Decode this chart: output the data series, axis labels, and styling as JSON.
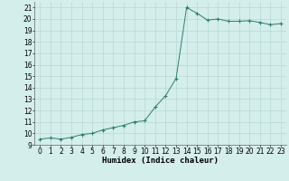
{
  "x": [
    0,
    1,
    2,
    3,
    4,
    5,
    6,
    7,
    8,
    9,
    10,
    11,
    12,
    13,
    14,
    15,
    16,
    17,
    18,
    19,
    20,
    21,
    22,
    23
  ],
  "y": [
    9.5,
    9.6,
    9.5,
    9.65,
    9.9,
    10.0,
    10.3,
    10.5,
    10.7,
    11.0,
    11.1,
    12.3,
    13.3,
    14.8,
    21.0,
    20.5,
    19.9,
    20.0,
    19.8,
    19.8,
    19.85,
    19.7,
    19.5,
    19.6
  ],
  "xlabel": "Humidex (Indice chaleur)",
  "xlim": [
    -0.5,
    23.5
  ],
  "ylim": [
    9,
    21.5
  ],
  "yticks": [
    9,
    10,
    11,
    12,
    13,
    14,
    15,
    16,
    17,
    18,
    19,
    20,
    21
  ],
  "xticks": [
    0,
    1,
    2,
    3,
    4,
    5,
    6,
    7,
    8,
    9,
    10,
    11,
    12,
    13,
    14,
    15,
    16,
    17,
    18,
    19,
    20,
    21,
    22,
    23
  ],
  "line_color": "#2e7d6e",
  "marker_color": "#2e7d6e",
  "bg_color": "#d4eeec",
  "grid_color": "#b8d8d4",
  "xlabel_fontsize": 6.5,
  "tick_fontsize": 5.5
}
